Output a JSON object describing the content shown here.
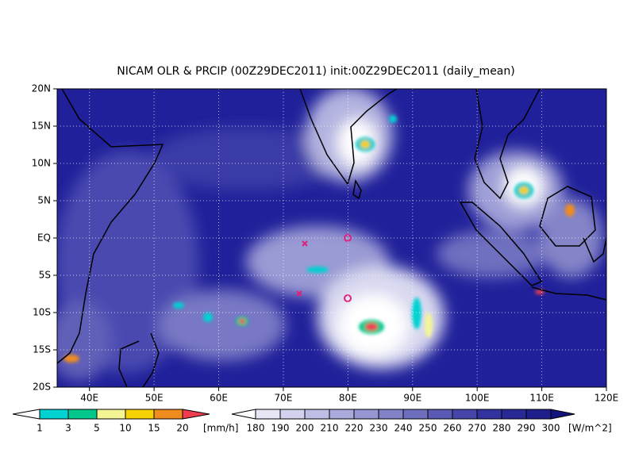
{
  "title": "NICAM OLR & PRCIP (00Z29DEC2011) init:00Z29DEC2011 (daily_mean)",
  "map": {
    "lon_range": [
      35,
      120
    ],
    "lat_range": [
      -20,
      20
    ],
    "lon_ticks": [
      {
        "value": 40,
        "label": "40E"
      },
      {
        "value": 50,
        "label": "50E"
      },
      {
        "value": 60,
        "label": "60E"
      },
      {
        "value": 70,
        "label": "70E"
      },
      {
        "value": 80,
        "label": "80E"
      },
      {
        "value": 90,
        "label": "90E"
      },
      {
        "value": 100,
        "label": "100E"
      },
      {
        "value": 110,
        "label": "110E"
      },
      {
        "value": 120,
        "label": "120E"
      }
    ],
    "lat_ticks": [
      {
        "value": 20,
        "label": "20N"
      },
      {
        "value": 15,
        "label": "15N"
      },
      {
        "value": 10,
        "label": "10N"
      },
      {
        "value": 5,
        "label": "5N"
      },
      {
        "value": 0,
        "label": "EQ"
      },
      {
        "value": -5,
        "label": "5S"
      },
      {
        "value": -10,
        "label": "10S"
      },
      {
        "value": -15,
        "label": "15S"
      },
      {
        "value": -20,
        "label": "20S"
      }
    ]
  },
  "precip_bar": {
    "ticks": [
      1,
      3,
      5,
      10,
      15,
      20
    ],
    "unit": "[mm/h]",
    "colors": [
      "#ffffff",
      "#00d2d2",
      "#00c88c",
      "#f5f596",
      "#f5d200",
      "#f08c1e",
      "#f03c50"
    ]
  },
  "olr_bar": {
    "ticks": [
      180,
      190,
      200,
      210,
      220,
      230,
      240,
      250,
      260,
      270,
      280,
      290,
      300
    ],
    "unit": "[W/m^2]",
    "colors": [
      "#ffffff",
      "#e6e6f5",
      "#d2d2ee",
      "#bebee6",
      "#aaaadc",
      "#9696d2",
      "#8282c8",
      "#6e6ebe",
      "#5a5ab4",
      "#4646aa",
      "#3232a0",
      "#282896",
      "#1e1e8c",
      "#14147d"
    ]
  }
}
